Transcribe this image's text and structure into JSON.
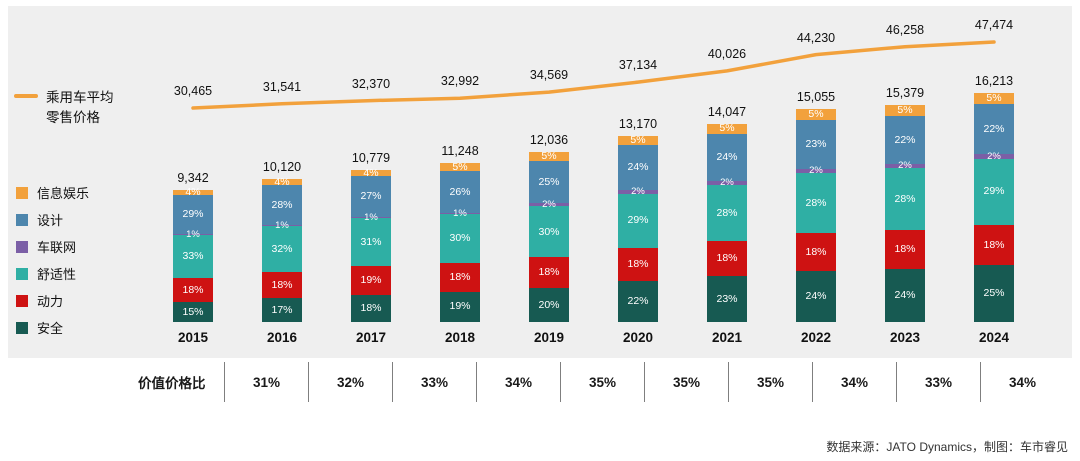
{
  "page": {
    "background": "#ffffff",
    "plot_background": "#efefef"
  },
  "legend": {
    "line_series": {
      "label_line1": "乘用车平均",
      "label_line2": "零售价格",
      "color": "#F2A13C"
    },
    "items": [
      {
        "label": "信息娱乐",
        "color": "#F2A13C"
      },
      {
        "label": "设计",
        "color": "#4D86AD"
      },
      {
        "label": "车联网",
        "color": "#7B5FA6"
      },
      {
        "label": "舒适性",
        "color": "#2FAFA4"
      },
      {
        "label": "动力",
        "color": "#CE1212"
      },
      {
        "label": "安全",
        "color": "#175A52"
      }
    ]
  },
  "chart_data": {
    "type": "bar",
    "subtype": "stacked-bar-with-line",
    "categories": [
      "2015",
      "2016",
      "2017",
      "2018",
      "2019",
      "2020",
      "2021",
      "2022",
      "2023",
      "2024"
    ],
    "bar_totals": [
      9342,
      10120,
      10779,
      11248,
      12036,
      13170,
      14047,
      15055,
      15379,
      16213
    ],
    "bar_total_labels": [
      "9,342",
      "10,120",
      "10,779",
      "11,248",
      "12,036",
      "13,170",
      "14,047",
      "15,055",
      "15,379",
      "16,213"
    ],
    "series": [
      {
        "name": "安全",
        "color": "#175A52",
        "values": [
          15,
          17,
          18,
          19,
          20,
          22,
          23,
          24,
          24,
          25
        ]
      },
      {
        "name": "动力",
        "color": "#CE1212",
        "values": [
          18,
          18,
          19,
          18,
          18,
          18,
          18,
          18,
          18,
          18
        ]
      },
      {
        "name": "舒适性",
        "color": "#2FAFA4",
        "values": [
          33,
          32,
          31,
          30,
          30,
          29,
          28,
          28,
          28,
          29
        ]
      },
      {
        "name": "车联网",
        "color": "#7B5FA6",
        "values": [
          1,
          1,
          1,
          1,
          2,
          2,
          2,
          2,
          2,
          2
        ]
      },
      {
        "name": "设计",
        "color": "#4D86AD",
        "values": [
          29,
          28,
          27,
          26,
          25,
          24,
          24,
          23,
          22,
          22
        ]
      },
      {
        "name": "信息娱乐",
        "color": "#F2A13C",
        "values": [
          4,
          4,
          4,
          5,
          5,
          5,
          5,
          5,
          5,
          5
        ]
      }
    ],
    "line_series": {
      "name": "乘用车平均零售价格",
      "color": "#F2A13C",
      "values": [
        30465,
        31541,
        32370,
        32992,
        34569,
        37134,
        40026,
        44230,
        46258,
        47474
      ],
      "labels": [
        "30,465",
        "31,541",
        "32,370",
        "32,992",
        "34,569",
        "37,134",
        "40,026",
        "44,230",
        "46,258",
        "47,474"
      ]
    },
    "ratio": {
      "label": "价值价格比",
      "values": [
        "31%",
        "32%",
        "33%",
        "34%",
        "35%",
        "35%",
        "35%",
        "34%",
        "33%",
        "34%"
      ]
    },
    "layout_hints": {
      "legend_position": "left",
      "grid": false,
      "bar_label_color": "#ffffff"
    }
  },
  "footer": {
    "source": "数据来源：JATO Dynamics，制图：车市睿见"
  }
}
